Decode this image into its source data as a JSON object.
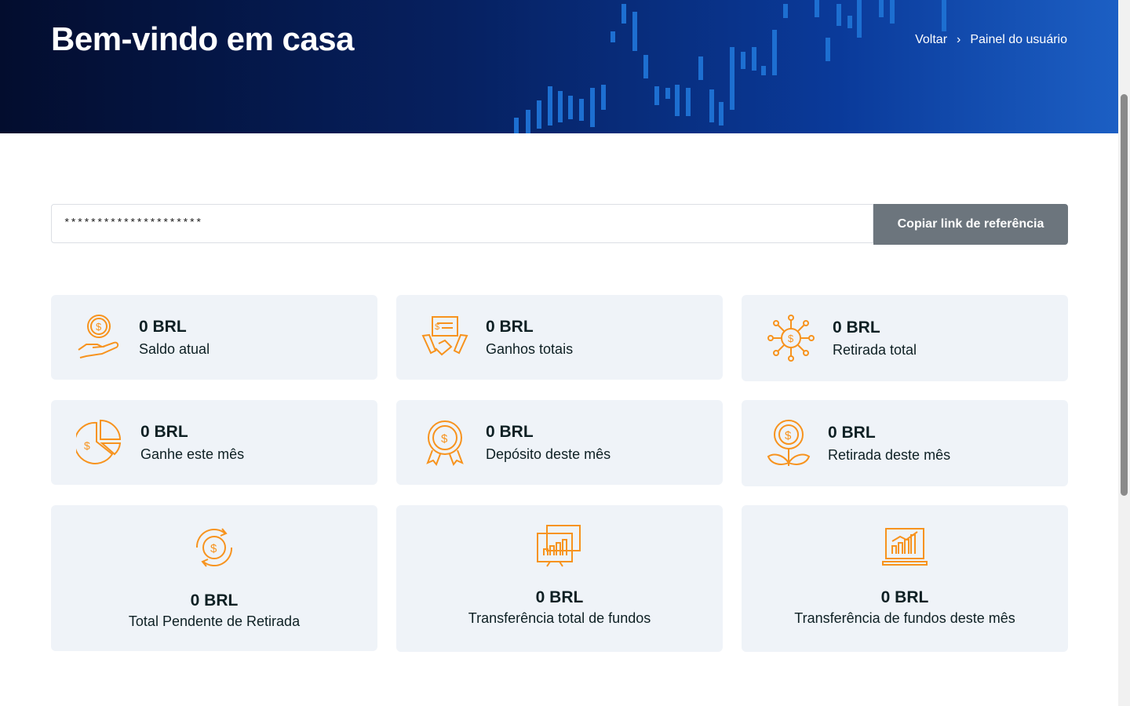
{
  "header": {
    "title": "Bem-vindo em casa",
    "breadcrumb": [
      {
        "label": "Voltar"
      },
      {
        "label": "Painel do usuário"
      }
    ]
  },
  "referral": {
    "value": "*********************",
    "button_label": "Copiar link de referência"
  },
  "accent_color": "#f7931e",
  "cards": [
    {
      "amount": "0 BRL",
      "label": "Saldo atual",
      "icon": "hand-coin-icon"
    },
    {
      "amount": "0 BRL",
      "label": "Ganhos totais",
      "icon": "handshake-icon"
    },
    {
      "amount": "0 BRL",
      "label": "Retirada total",
      "icon": "network-dollar-icon"
    },
    {
      "amount": "0 BRL",
      "label": "Ganhe este mês",
      "icon": "pie-chart-dollar-icon"
    },
    {
      "amount": "0 BRL",
      "label": "Depósito deste mês",
      "icon": "award-dollar-icon"
    },
    {
      "amount": "0 BRL",
      "label": "Retirada deste mês",
      "icon": "plant-coin-icon"
    },
    {
      "amount": "0 BRL",
      "label": "Total Pendente de Retirada",
      "icon": "cycle-dollar-icon"
    },
    {
      "amount": "0 BRL",
      "label": "Transferência total de fundos",
      "icon": "bar-chart-windows-icon"
    },
    {
      "amount": "0 BRL",
      "label": "Transferência de fundos deste mês",
      "icon": "laptop-chart-icon"
    }
  ]
}
